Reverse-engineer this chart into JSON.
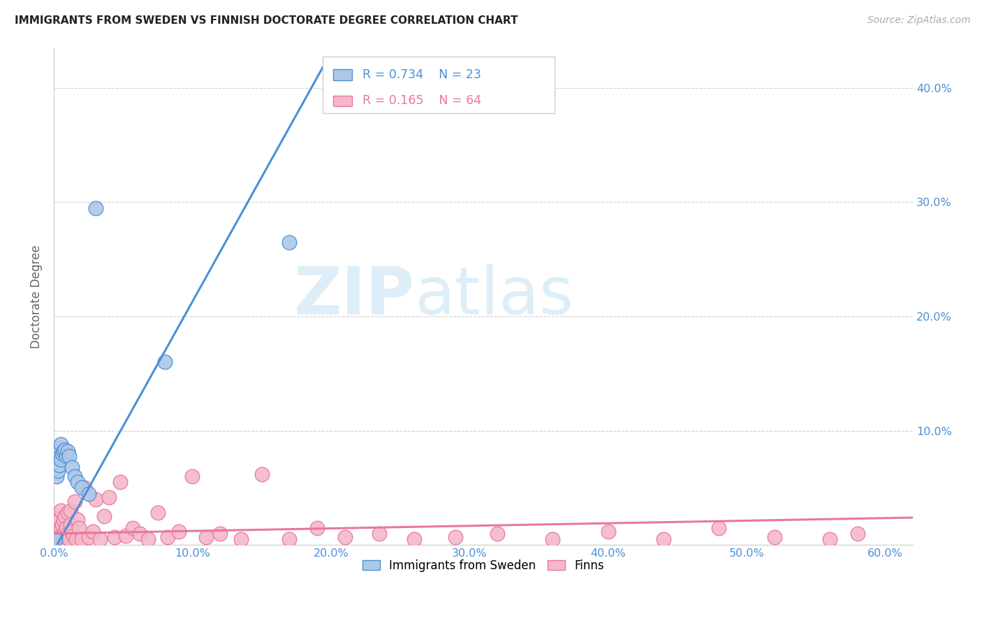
{
  "title": "IMMIGRANTS FROM SWEDEN VS FINNISH DOCTORATE DEGREE CORRELATION CHART",
  "source": "Source: ZipAtlas.com",
  "ylabel": "Doctorate Degree",
  "xlim": [
    0.0,
    0.62
  ],
  "ylim": [
    0.0,
    0.435
  ],
  "xtick_vals": [
    0.0,
    0.1,
    0.2,
    0.3,
    0.4,
    0.5,
    0.6
  ],
  "xtick_labels": [
    "0.0%",
    "10.0%",
    "20.0%",
    "30.0%",
    "40.0%",
    "50.0%",
    "60.0%"
  ],
  "ytick_vals": [
    0.0,
    0.1,
    0.2,
    0.3,
    0.4
  ],
  "ytick_labels": [
    "",
    "10.0%",
    "20.0%",
    "30.0%",
    "40.0%"
  ],
  "sweden_R": 0.734,
  "sweden_N": 23,
  "finland_R": 0.165,
  "finland_N": 64,
  "sweden_color": "#adc8e8",
  "finland_color": "#f5b8cb",
  "sweden_line_color": "#4a90d9",
  "finland_line_color": "#e8789a",
  "sweden_scatter_x": [
    0.001,
    0.002,
    0.002,
    0.003,
    0.003,
    0.004,
    0.004,
    0.005,
    0.005,
    0.006,
    0.007,
    0.008,
    0.009,
    0.01,
    0.011,
    0.013,
    0.015,
    0.017,
    0.02,
    0.025,
    0.03,
    0.08,
    0.17
  ],
  "sweden_scatter_y": [
    0.005,
    0.06,
    0.075,
    0.065,
    0.08,
    0.07,
    0.085,
    0.075,
    0.088,
    0.08,
    0.082,
    0.083,
    0.078,
    0.082,
    0.078,
    0.068,
    0.06,
    0.055,
    0.05,
    0.045,
    0.295,
    0.16,
    0.265
  ],
  "finland_scatter_x": [
    0.001,
    0.002,
    0.002,
    0.003,
    0.003,
    0.004,
    0.004,
    0.005,
    0.005,
    0.006,
    0.006,
    0.007,
    0.007,
    0.008,
    0.008,
    0.009,
    0.009,
    0.01,
    0.01,
    0.011,
    0.012,
    0.012,
    0.013,
    0.014,
    0.015,
    0.016,
    0.017,
    0.018,
    0.02,
    0.022,
    0.025,
    0.028,
    0.03,
    0.033,
    0.036,
    0.04,
    0.044,
    0.048,
    0.052,
    0.057,
    0.062,
    0.068,
    0.075,
    0.082,
    0.09,
    0.1,
    0.11,
    0.12,
    0.135,
    0.15,
    0.17,
    0.19,
    0.21,
    0.235,
    0.26,
    0.29,
    0.32,
    0.36,
    0.4,
    0.44,
    0.48,
    0.52,
    0.56,
    0.58
  ],
  "finland_scatter_y": [
    0.005,
    0.008,
    0.02,
    0.012,
    0.025,
    0.01,
    0.022,
    0.015,
    0.03,
    0.008,
    0.018,
    0.005,
    0.022,
    0.012,
    0.025,
    0.007,
    0.015,
    0.01,
    0.028,
    0.005,
    0.018,
    0.03,
    0.012,
    0.008,
    0.038,
    0.005,
    0.022,
    0.015,
    0.005,
    0.05,
    0.007,
    0.012,
    0.04,
    0.005,
    0.025,
    0.042,
    0.007,
    0.055,
    0.008,
    0.015,
    0.01,
    0.005,
    0.028,
    0.007,
    0.012,
    0.06,
    0.007,
    0.01,
    0.005,
    0.062,
    0.005,
    0.015,
    0.007,
    0.01,
    0.005,
    0.007,
    0.01,
    0.005,
    0.012,
    0.005,
    0.015,
    0.007,
    0.005,
    0.01
  ],
  "sweden_line_x": [
    0.0,
    0.195
  ],
  "sweden_line_y": [
    -0.005,
    0.42
  ],
  "finland_line_x": [
    0.0,
    0.62
  ],
  "finland_line_y": [
    0.01,
    0.024
  ],
  "watermark_zip": "ZIP",
  "watermark_atlas": "atlas",
  "background_color": "#ffffff",
  "grid_color": "#d0d0d0"
}
